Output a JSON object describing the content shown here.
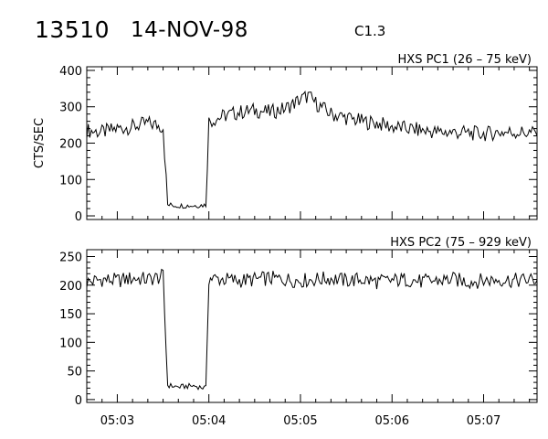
{
  "header": {
    "event_id": "13510",
    "date": "14-NOV-98",
    "goes_class": "C1.3"
  },
  "chart_data": [
    {
      "type": "line",
      "title": "HXS PC1 (26 – 75 keV)",
      "ylabel": "CTS/SEC",
      "xlabel": "",
      "xlim": [
        "05:02:40",
        "05:07:35"
      ],
      "ylim": [
        -10,
        410
      ],
      "yticks": [
        0,
        100,
        200,
        300,
        400
      ],
      "xticks": [
        "05:03",
        "05:04",
        "05:05",
        "05:06",
        "05:07"
      ],
      "grid": false,
      "x": [
        "05:02:40",
        "05:02:50",
        "05:03:00",
        "05:03:10",
        "05:03:20",
        "05:03:30",
        "05:03:33",
        "05:03:40",
        "05:03:50",
        "05:03:58",
        "05:04:00",
        "05:04:10",
        "05:04:20",
        "05:04:30",
        "05:04:40",
        "05:04:50",
        "05:05:00",
        "05:05:05",
        "05:05:10",
        "05:05:20",
        "05:05:30",
        "05:05:40",
        "05:05:50",
        "05:06:00",
        "05:06:10",
        "05:06:20",
        "05:06:30",
        "05:06:40",
        "05:06:50",
        "05:07:00",
        "05:07:10",
        "05:07:20",
        "05:07:35"
      ],
      "values": [
        235,
        230,
        240,
        245,
        255,
        245,
        30,
        28,
        28,
        30,
        260,
        275,
        285,
        290,
        285,
        295,
        320,
        330,
        310,
        280,
        270,
        260,
        255,
        245,
        240,
        235,
        230,
        230,
        228,
        225,
        230,
        230,
        228
      ]
    },
    {
      "type": "line",
      "title": "HXS PC2 (75 – 929 keV)",
      "ylabel": "",
      "xlabel": "",
      "xlim": [
        "05:02:40",
        "05:07:35"
      ],
      "ylim": [
        -5,
        262
      ],
      "yticks": [
        0,
        50,
        100,
        150,
        200,
        250
      ],
      "xticks": [
        "05:03",
        "05:04",
        "05:05",
        "05:06",
        "05:07"
      ],
      "grid": false,
      "x": [
        "05:02:40",
        "05:02:50",
        "05:03:00",
        "05:03:10",
        "05:03:20",
        "05:03:30",
        "05:03:33",
        "05:03:40",
        "05:03:50",
        "05:03:58",
        "05:04:00",
        "05:04:10",
        "05:04:20",
        "05:04:30",
        "05:04:40",
        "05:04:50",
        "05:05:00",
        "05:05:10",
        "05:05:20",
        "05:05:30",
        "05:05:40",
        "05:05:50",
        "05:06:00",
        "05:06:10",
        "05:06:20",
        "05:06:30",
        "05:06:40",
        "05:06:50",
        "05:07:00",
        "05:07:10",
        "05:07:20",
        "05:07:35"
      ],
      "values": [
        205,
        210,
        208,
        212,
        210,
        215,
        25,
        22,
        24,
        20,
        212,
        210,
        208,
        210,
        212,
        210,
        208,
        210,
        212,
        208,
        210,
        206,
        208,
        210,
        206,
        208,
        210,
        206,
        208,
        210,
        208,
        210
      ]
    }
  ]
}
